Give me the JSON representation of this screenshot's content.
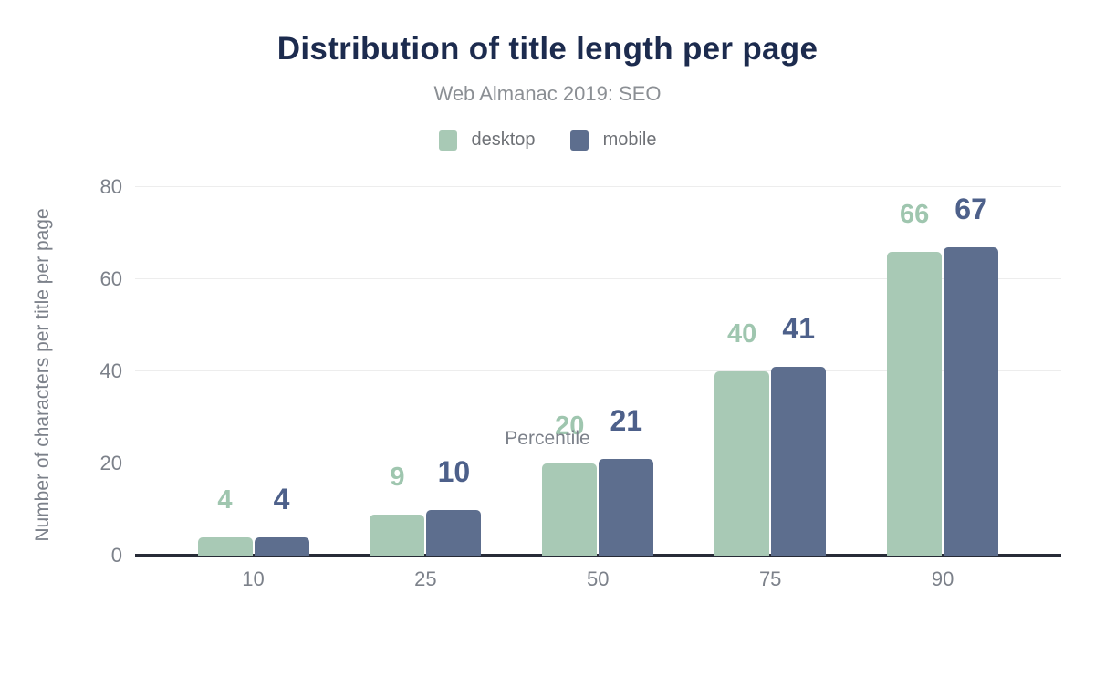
{
  "header": {
    "title": "Distribution of title length per page",
    "subtitle": "Web Almanac 2019: SEO"
  },
  "legend": [
    {
      "label": "desktop",
      "color": "#a8c9b5"
    },
    {
      "label": "mobile",
      "color": "#5d6e8e"
    }
  ],
  "chart_data": {
    "type": "bar",
    "title": "Distribution of title length per page",
    "subtitle": "Web Almanac 2019: SEO",
    "categories": [
      "10",
      "25",
      "50",
      "75",
      "90"
    ],
    "series": [
      {
        "name": "desktop",
        "color": "#a8c9b5",
        "label_color": "#9fc6af",
        "values": [
          4,
          9,
          20,
          40,
          66
        ]
      },
      {
        "name": "mobile",
        "color": "#5d6e8e",
        "label_color": "#4d608a",
        "values": [
          4,
          10,
          21,
          41,
          67
        ]
      }
    ],
    "xlabel": "Percentile",
    "ylabel": "Number of characters per title per page",
    "ylim": [
      0,
      80
    ],
    "yticks": [
      0,
      20,
      40,
      60,
      80
    ],
    "grid": "horizontal",
    "legend_position": "top",
    "colors": {
      "title": "#1c2b4e",
      "subtitle": "#8b8f94",
      "axis_text": "#7c818a",
      "gridline": "#ededed",
      "axis_line": "#272b37"
    }
  }
}
